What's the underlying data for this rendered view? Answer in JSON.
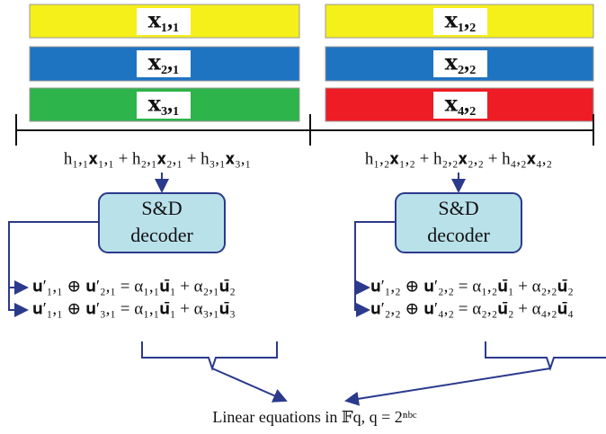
{
  "blocks": [
    {
      "label": "𝐱₁,₁"
    },
    {
      "label": "𝐱₁,₂"
    },
    {
      "label": "𝐱₂,₁"
    },
    {
      "label": "𝐱₂,₂"
    },
    {
      "label": "𝐱₃,₁"
    },
    {
      "label": "𝐱₄,₂"
    }
  ],
  "received": [
    "h₁,₁𝐱₁,₁ + h₂,₁𝐱₂,₁ + h₃,₁𝐱₃,₁",
    "h₁,₂𝐱₁,₂ + h₂,₂𝐱₂,₂ + h₄,₂𝐱₄,₂"
  ],
  "decoders": [
    {
      "line1": "S&D",
      "line2": "decoder"
    },
    {
      "line1": "S&D",
      "line2": "decoder"
    }
  ],
  "equations": [
    [
      "𝐮′₁,₁ ⊕ 𝐮′₂,₁ = α₁,₁𝐮̄₁ + α₂,₁𝐮̄₂",
      "𝐮′₁,₁ ⊕ 𝐮′₃,₁ = α₁,₁𝐮̄₁ + α₃,₁𝐮̄₃"
    ],
    [
      "𝐮′₁,₂ ⊕ 𝐮′₂,₂ = α₁,₂𝐮̄₁ + α₂,₂𝐮̄₂",
      "𝐮′₂,₂ ⊕ 𝐮′₄,₂ = α₂,₂𝐮̄₂ + α₄,₂𝐮̄₄"
    ]
  ],
  "caption": "Linear equations in 𝔽q,  q = 2ⁿᵇᶜ"
}
